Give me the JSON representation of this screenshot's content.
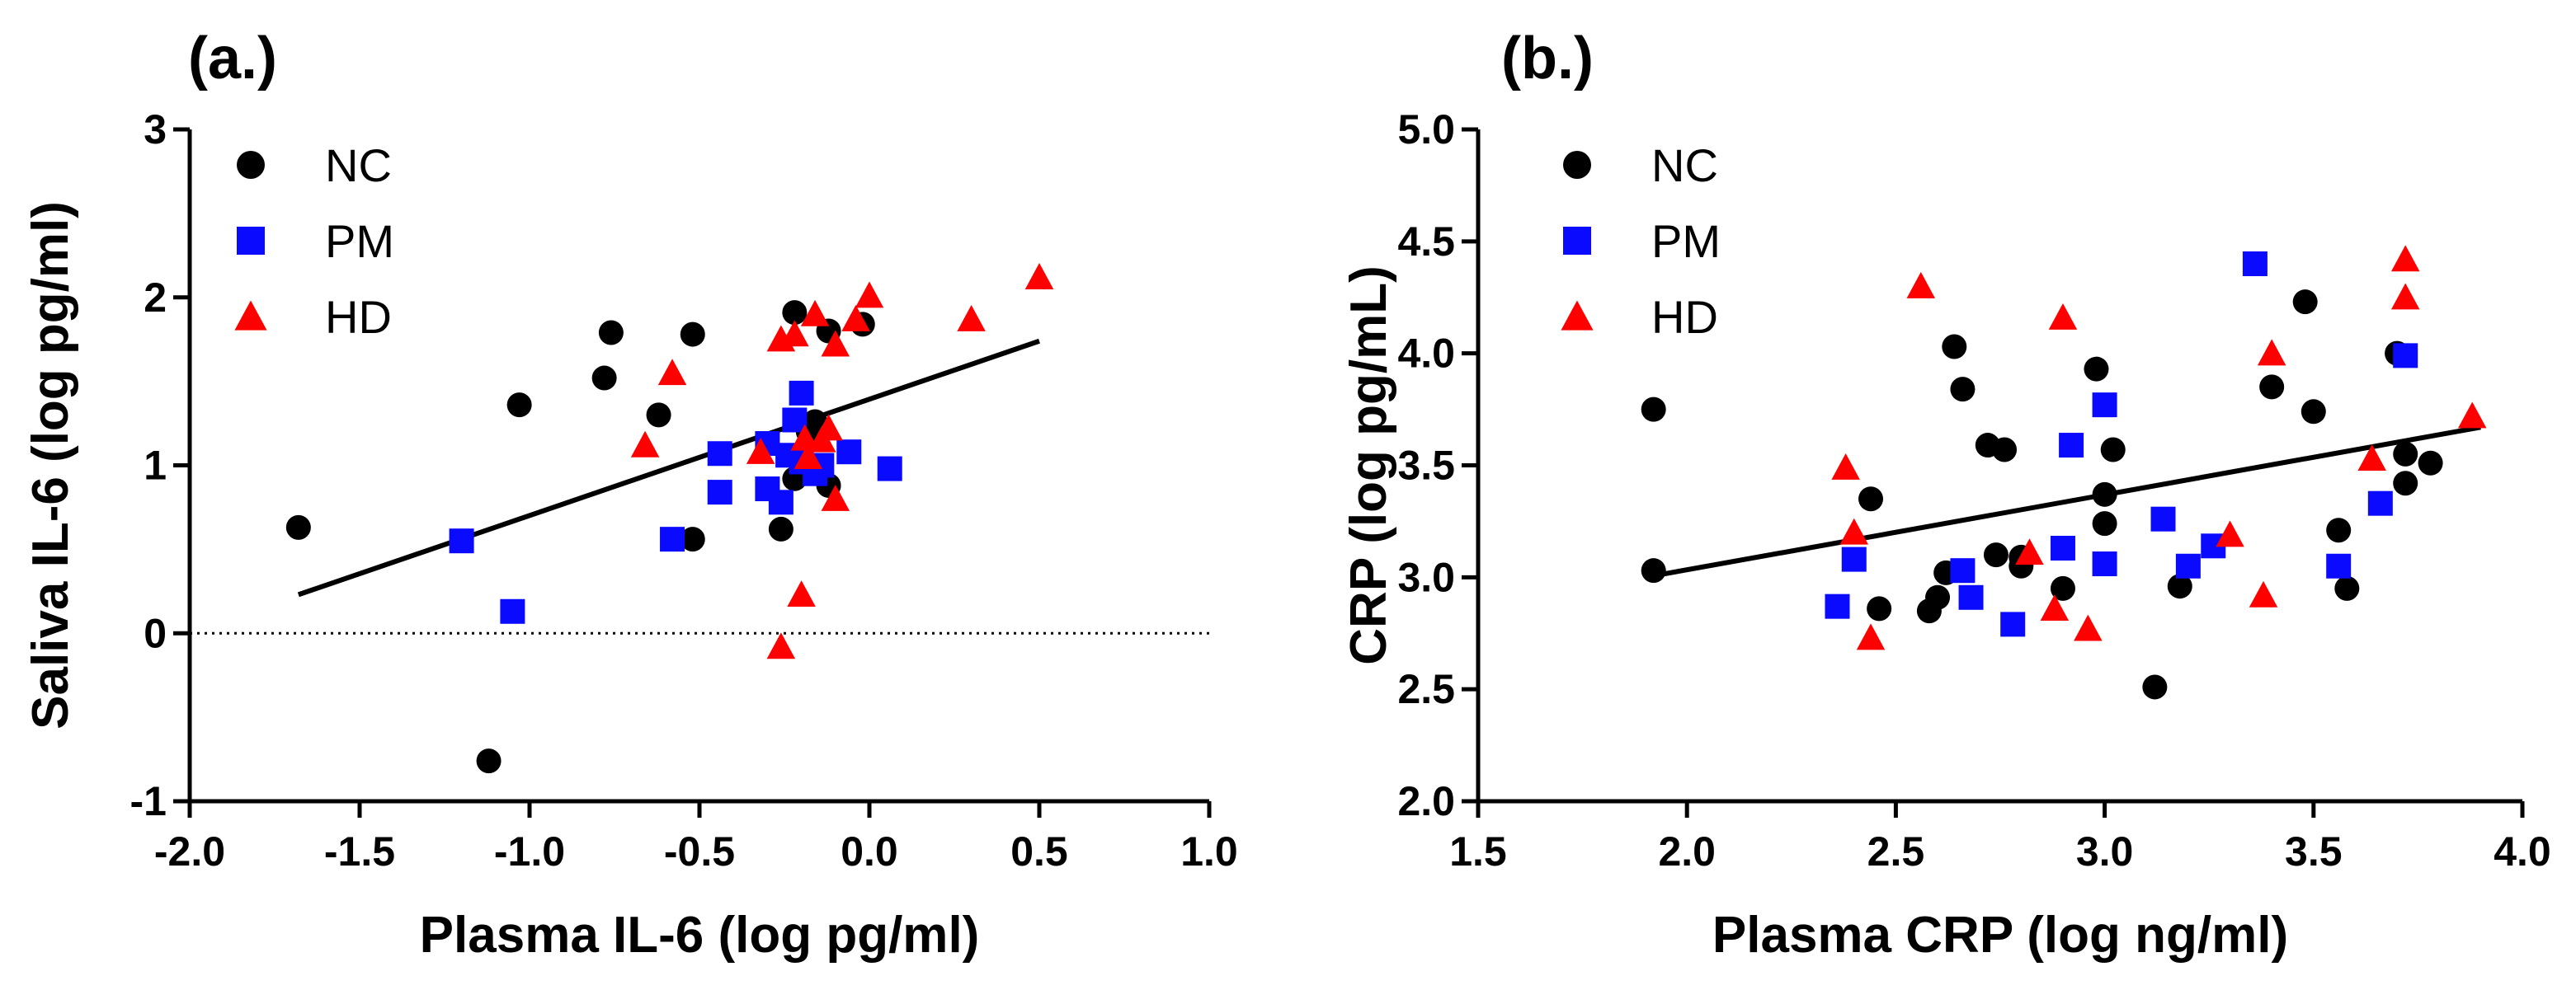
{
  "figure": {
    "colors": {
      "NC": "#000000",
      "PM": "#0a0aff",
      "HD": "#ff0000",
      "axis": "#000000",
      "fit": "#000000"
    }
  },
  "chart_data": [
    {
      "type": "scatter",
      "panel_label": "(a.)",
      "xlabel": "Plasma IL-6 (log pg/ml)",
      "ylabel": "Saliva IL-6 (log pg/ml)",
      "xlim": [
        -2.0,
        1.0
      ],
      "ylim": [
        -1,
        3
      ],
      "xticks": [
        -2.0,
        -1.5,
        -1.0,
        -0.5,
        0.0,
        0.5,
        1.0
      ],
      "xtick_labels": [
        "-2.0",
        "-1.5",
        "-1.0",
        "-0.5",
        "0.0",
        "0.5",
        "1.0"
      ],
      "yticks": [
        -1,
        0,
        1,
        2,
        3
      ],
      "ytick_labels": [
        "-1",
        "0",
        "1",
        "2",
        "3"
      ],
      "reference_line_y": 0,
      "legend": [
        "NC",
        "PM",
        "HD"
      ],
      "legend_position": "top-left",
      "fit_line": {
        "x": [
          -1.68,
          0.5
        ],
        "y": [
          0.23,
          1.74
        ]
      },
      "series": [
        {
          "name": "NC",
          "marker": "circle",
          "points": [
            [
              -1.68,
              0.63
            ],
            [
              -1.12,
              -0.76
            ],
            [
              -1.03,
              1.36
            ],
            [
              -0.78,
              1.52
            ],
            [
              -0.76,
              1.79
            ],
            [
              -0.62,
              1.3
            ],
            [
              -0.52,
              1.78
            ],
            [
              -0.52,
              0.56
            ],
            [
              -0.26,
              0.62
            ],
            [
              -0.22,
              1.91
            ],
            [
              -0.18,
              1.2
            ],
            [
              -0.16,
              1.26
            ],
            [
              -0.12,
              1.8
            ],
            [
              -0.12,
              0.88
            ],
            [
              -0.02,
              1.84
            ],
            [
              -0.22,
              0.92
            ]
          ]
        },
        {
          "name": "PM",
          "marker": "square",
          "points": [
            [
              -1.2,
              0.55
            ],
            [
              -1.05,
              0.13
            ],
            [
              -0.58,
              0.56
            ],
            [
              -0.44,
              1.07
            ],
            [
              -0.44,
              0.84
            ],
            [
              -0.3,
              1.13
            ],
            [
              -0.3,
              0.86
            ],
            [
              -0.26,
              0.78
            ],
            [
              -0.24,
              1.06
            ],
            [
              -0.22,
              1.27
            ],
            [
              -0.2,
              1.43
            ],
            [
              -0.2,
              1.02
            ],
            [
              -0.14,
              1.0
            ],
            [
              -0.06,
              1.08
            ],
            [
              0.06,
              0.98
            ],
            [
              -0.16,
              0.95
            ]
          ]
        },
        {
          "name": "HD",
          "marker": "triangle",
          "points": [
            [
              -0.66,
              1.12
            ],
            [
              -0.58,
              1.55
            ],
            [
              -0.32,
              1.08
            ],
            [
              -0.26,
              1.75
            ],
            [
              -0.26,
              -0.08
            ],
            [
              -0.22,
              1.78
            ],
            [
              -0.2,
              0.23
            ],
            [
              -0.19,
              1.16
            ],
            [
              -0.16,
              1.9
            ],
            [
              -0.14,
              1.15
            ],
            [
              -0.1,
              1.72
            ],
            [
              -0.1,
              0.8
            ],
            [
              -0.04,
              1.87
            ],
            [
              0.0,
              2.01
            ],
            [
              0.3,
              1.87
            ],
            [
              0.5,
              2.12
            ],
            [
              -0.18,
              1.05
            ],
            [
              -0.12,
              1.22
            ]
          ]
        }
      ]
    },
    {
      "type": "scatter",
      "panel_label": "(b.)",
      "xlabel": "Plasma CRP (log ng/ml)",
      "ylabel": "CRP (log pg/mL)",
      "xlim": [
        1.5,
        4.0
      ],
      "ylim": [
        2.0,
        5.0
      ],
      "xticks": [
        1.5,
        2.0,
        2.5,
        3.0,
        3.5,
        4.0
      ],
      "xtick_labels": [
        "1.5",
        "2.0",
        "2.5",
        "3.0",
        "3.5",
        "4.0"
      ],
      "yticks": [
        2.0,
        2.5,
        3.0,
        3.5,
        4.0,
        4.5,
        5.0
      ],
      "ytick_labels": [
        "2.0",
        "2.5",
        "3.0",
        "3.5",
        "4.0",
        "4.5",
        "5.0"
      ],
      "legend": [
        "NC",
        "PM",
        "HD"
      ],
      "legend_position": "top-left",
      "fit_line": {
        "x": [
          1.9,
          3.9
        ],
        "y": [
          3.0,
          3.67
        ]
      },
      "series": [
        {
          "name": "NC",
          "marker": "circle",
          "points": [
            [
              1.92,
              3.75
            ],
            [
              1.92,
              3.03
            ],
            [
              2.44,
              3.35
            ],
            [
              2.46,
              2.86
            ],
            [
              2.58,
              2.85
            ],
            [
              2.6,
              2.91
            ],
            [
              2.62,
              3.02
            ],
            [
              2.64,
              4.03
            ],
            [
              2.66,
              3.84
            ],
            [
              2.72,
              3.59
            ],
            [
              2.74,
              3.1
            ],
            [
              2.76,
              3.57
            ],
            [
              2.8,
              3.05
            ],
            [
              2.8,
              3.09
            ],
            [
              2.9,
              2.95
            ],
            [
              2.98,
              3.93
            ],
            [
              3.0,
              3.37
            ],
            [
              3.0,
              3.24
            ],
            [
              3.02,
              3.57
            ],
            [
              3.12,
              2.51
            ],
            [
              3.18,
              2.96
            ],
            [
              3.4,
              3.85
            ],
            [
              3.48,
              4.23
            ],
            [
              3.5,
              3.74
            ],
            [
              3.56,
              3.21
            ],
            [
              3.58,
              2.95
            ],
            [
              3.7,
              4.0
            ],
            [
              3.72,
              3.55
            ],
            [
              3.72,
              3.42
            ],
            [
              3.78,
              3.51
            ]
          ]
        },
        {
          "name": "PM",
          "marker": "square",
          "points": [
            [
              2.36,
              2.87
            ],
            [
              2.4,
              3.08
            ],
            [
              2.66,
              3.03
            ],
            [
              2.68,
              2.91
            ],
            [
              2.78,
              2.79
            ],
            [
              2.9,
              3.13
            ],
            [
              2.92,
              3.59
            ],
            [
              3.0,
              3.77
            ],
            [
              3.0,
              3.06
            ],
            [
              3.14,
              3.26
            ],
            [
              3.2,
              3.05
            ],
            [
              3.26,
              3.14
            ],
            [
              3.36,
              4.4
            ],
            [
              3.56,
              3.05
            ],
            [
              3.66,
              3.33
            ],
            [
              3.72,
              3.99
            ]
          ]
        },
        {
          "name": "HD",
          "marker": "triangle",
          "points": [
            [
              2.38,
              3.49
            ],
            [
              2.4,
              3.2
            ],
            [
              2.44,
              2.73
            ],
            [
              2.56,
              4.3
            ],
            [
              2.82,
              3.11
            ],
            [
              2.88,
              2.86
            ],
            [
              2.9,
              4.16
            ],
            [
              2.96,
              2.77
            ],
            [
              3.3,
              3.19
            ],
            [
              3.38,
              2.92
            ],
            [
              3.4,
              4.0
            ],
            [
              3.64,
              3.53
            ],
            [
              3.72,
              4.42
            ],
            [
              3.72,
              4.25
            ],
            [
              3.88,
              3.72
            ]
          ]
        }
      ]
    }
  ]
}
